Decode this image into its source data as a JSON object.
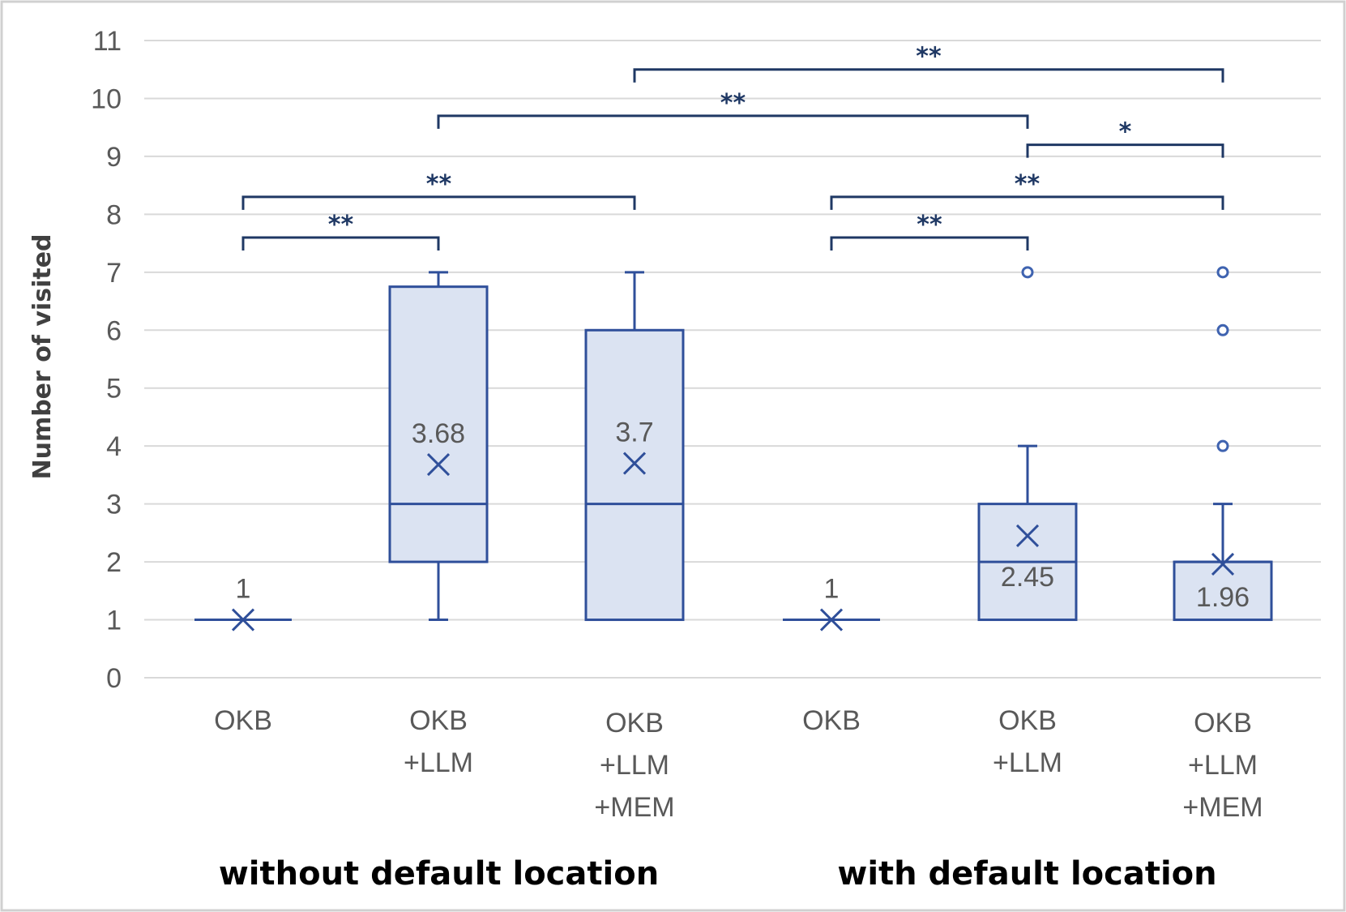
{
  "chart_data": {
    "type": "box",
    "ylabel": "Number of visited",
    "ylim": [
      0,
      11
    ],
    "yticks": [
      "0",
      "1",
      "2",
      "3",
      "4",
      "5",
      "6",
      "7",
      "8",
      "9",
      "10",
      "11"
    ],
    "grid": true,
    "groups": [
      {
        "label": "without default location",
        "category_indices": [
          0,
          1,
          2
        ]
      },
      {
        "label": "with default location",
        "category_indices": [
          3,
          4,
          5
        ]
      }
    ],
    "categories": [
      {
        "lines": [
          "OKB"
        ],
        "min": 1,
        "q1": 1,
        "median": 1,
        "q3": 1,
        "max": 1,
        "mean": 1,
        "mean_label": "1",
        "outliers": []
      },
      {
        "lines": [
          "OKB",
          "+LLM"
        ],
        "min": 1,
        "q1": 2,
        "median": 3,
        "q3": 6.75,
        "max": 7,
        "mean": 3.68,
        "mean_label": "3.68",
        "outliers": []
      },
      {
        "lines": [
          "OKB",
          "+LLM",
          "+MEM"
        ],
        "min": 1,
        "q1": 1,
        "median": 3,
        "q3": 6,
        "max": 7,
        "mean": 3.7,
        "mean_label": "3.7",
        "outliers": []
      },
      {
        "lines": [
          "OKB"
        ],
        "min": 1,
        "q1": 1,
        "median": 1,
        "q3": 1,
        "max": 1,
        "mean": 1,
        "mean_label": "1",
        "outliers": []
      },
      {
        "lines": [
          "OKB",
          "+LLM"
        ],
        "min": 1,
        "q1": 1,
        "median": 2,
        "q3": 3,
        "max": 4,
        "mean": 2.45,
        "mean_label": "2.45",
        "outliers": [
          7
        ]
      },
      {
        "lines": [
          "OKB",
          "+LLM",
          "+MEM"
        ],
        "min": 1,
        "q1": 1,
        "median": 2,
        "q3": 2,
        "max": 3,
        "mean": 1.96,
        "mean_label": "1.96",
        "outliers": [
          4,
          6,
          7
        ]
      }
    ],
    "significance": [
      {
        "from": 0,
        "to": 1,
        "level": 7.6,
        "label": "**"
      },
      {
        "from": 0,
        "to": 2,
        "level": 8.3,
        "label": "**"
      },
      {
        "from": 1,
        "to": 4,
        "level": 9.7,
        "label": "**"
      },
      {
        "from": 2,
        "to": 5,
        "level": 10.5,
        "label": "**"
      },
      {
        "from": 3,
        "to": 4,
        "level": 7.6,
        "label": "**"
      },
      {
        "from": 3,
        "to": 5,
        "level": 8.3,
        "label": "**"
      },
      {
        "from": 4,
        "to": 5,
        "level": 9.2,
        "label": "*"
      }
    ]
  }
}
